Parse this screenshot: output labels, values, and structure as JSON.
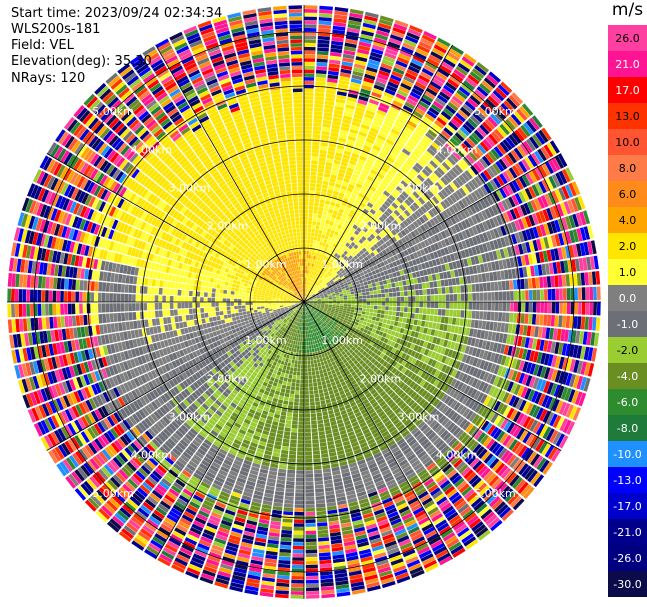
{
  "info": {
    "start_time": "Start time: 2023/09/24 02:34:34",
    "site": "WLS200s-181",
    "field": "Field: VEL",
    "elevation": "Elevation(deg): 35.30",
    "nrays": "NRays: 120"
  },
  "chart_data": {
    "type": "heatmap",
    "subtype": "polar PPI (plan position indicator)",
    "field": "VEL",
    "unit": "m/s",
    "nrays": 120,
    "elevation_deg": 35.3,
    "max_range_km": 5.5,
    "range_rings_km": [
      1,
      2,
      3,
      4,
      5
    ],
    "range_ring_labels": [
      "1.00km",
      "2.00km",
      "3.00km",
      "4.00km",
      "5.00km"
    ],
    "radial_lines_deg": [
      0,
      30,
      60,
      90,
      120,
      150,
      180,
      210,
      240,
      270,
      300,
      330
    ],
    "colorbar": {
      "title": "m/s",
      "labels": [
        "26.0",
        "21.0",
        "17.0",
        "13.0",
        "10.0",
        "8.0",
        "6.0",
        "4.0",
        "2.0",
        "1.0",
        "0.0",
        "-1.0",
        "-2.0",
        "-4.0",
        "-6.0",
        "-8.0",
        "-10.0",
        "-13.0",
        "-17.0",
        "-21.0",
        "-26.0",
        "-30.0"
      ],
      "bins": [
        {
          "min": 26,
          "max": 30,
          "color": "#ff40a0"
        },
        {
          "min": 21,
          "max": 26,
          "color": "#ff1493"
        },
        {
          "min": 17,
          "max": 21,
          "color": "#ff0000"
        },
        {
          "min": 13,
          "max": 17,
          "color": "#ff3300"
        },
        {
          "min": 10,
          "max": 13,
          "color": "#ff5533"
        },
        {
          "min": 8,
          "max": 10,
          "color": "#ff7c49"
        },
        {
          "min": 6,
          "max": 8,
          "color": "#ff8c1a"
        },
        {
          "min": 4,
          "max": 6,
          "color": "#ffa500"
        },
        {
          "min": 2,
          "max": 4,
          "color": "#ffe600"
        },
        {
          "min": 1,
          "max": 2,
          "color": "#ffff33"
        },
        {
          "min": 0,
          "max": 1,
          "color": "#7f7f7f"
        },
        {
          "min": -1,
          "max": 0,
          "color": "#6c6f76"
        },
        {
          "min": -2,
          "max": -1,
          "color": "#9acd32"
        },
        {
          "min": -4,
          "max": -2,
          "color": "#6b8e23"
        },
        {
          "min": -6,
          "max": -4,
          "color": "#2e8b2e"
        },
        {
          "min": -8,
          "max": -6,
          "color": "#1e7b3a"
        },
        {
          "min": -10,
          "max": -8,
          "color": "#1e90ff"
        },
        {
          "min": -13,
          "max": -10,
          "color": "#0000ff"
        },
        {
          "min": -17,
          "max": -13,
          "color": "#0000cd"
        },
        {
          "min": -21,
          "max": -17,
          "color": "#00008b"
        },
        {
          "min": -26,
          "max": -21,
          "color": "#000080"
        },
        {
          "min": -30,
          "max": -26,
          "color": "#0b0b4a"
        }
      ]
    },
    "description_pattern": {
      "near_range_0_to_1km": {
        "north_sector": 4.0,
        "south_sector": -4.0
      },
      "mid_range_1_to_3km": {
        "north": 2.0,
        "east": 0.0,
        "south": -2.0,
        "west": 1.0
      },
      "outer_range_4_to_5km": "noise (random values)"
    }
  }
}
